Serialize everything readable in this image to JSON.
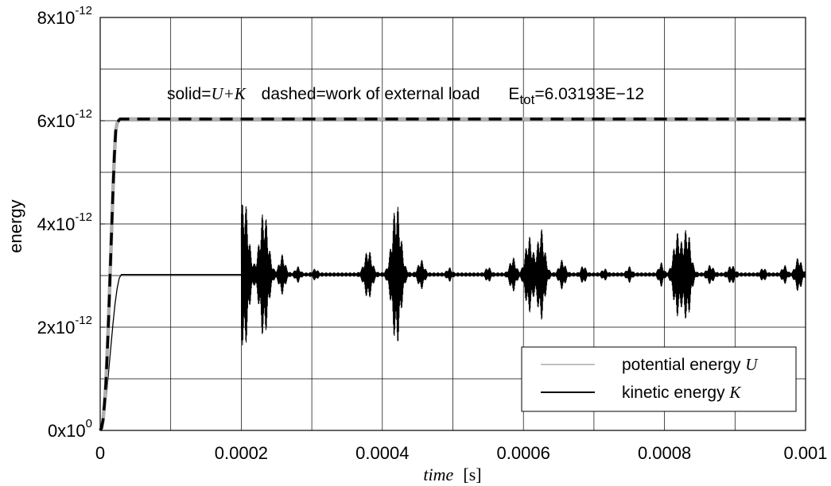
{
  "chart_data": {
    "type": "line",
    "xlabel": {
      "var": "time",
      "unit": "[s]"
    },
    "ylabel": "energy",
    "xlim": [
      0,
      0.001
    ],
    "ylim": [
      0,
      8e-12
    ],
    "x_ticks": [
      {
        "value": 0,
        "label": "0"
      },
      {
        "value": 0.0002,
        "label": "0.0002"
      },
      {
        "value": 0.0004,
        "label": "0.0004"
      },
      {
        "value": 0.0006,
        "label": "0.0006"
      },
      {
        "value": 0.0008,
        "label": "0.0008"
      },
      {
        "value": 0.001,
        "label": "0.001"
      }
    ],
    "y_ticks": [
      {
        "value": 0,
        "mantissa": "0x10",
        "exp": "0"
      },
      {
        "value": 2e-12,
        "mantissa": "2x10",
        "exp": "-12"
      },
      {
        "value": 4e-12,
        "mantissa": "4x10",
        "exp": "-12"
      },
      {
        "value": 6e-12,
        "mantissa": "6x10",
        "exp": "-12"
      },
      {
        "value": 8e-12,
        "mantissa": "8x10",
        "exp": "-12"
      }
    ],
    "grid": true,
    "annotation": {
      "solid_prefix": "solid=",
      "solid_expr": "U+K",
      "dashed_text": "dashed=work of external load",
      "etot_base": "E",
      "etot_sub": "tot",
      "etot_value": "=6.03193E−12"
    },
    "legend": {
      "placement": "bottom-right",
      "entries": [
        {
          "text": "potential energy ",
          "symbol": "U",
          "color": "#808080"
        },
        {
          "text": "kinetic energy ",
          "symbol": "K",
          "color": "#000000"
        }
      ]
    },
    "series": {
      "total_energy": {
        "style": "solid",
        "color": "#b0b0b0",
        "x": [
          0,
          2e-06,
          4e-06,
          6e-06,
          8e-06,
          1e-05,
          1.2e-05,
          1.4e-05,
          1.6e-05,
          1.8e-05,
          2e-05,
          2.2e-05,
          2.4e-05,
          2.6e-05,
          2.8e-05,
          3e-05,
          0.001
        ],
        "y": [
          0,
          5e-14,
          2e-13,
          5e-13,
          9e-13,
          1.5e-12,
          2.2e-12,
          3e-12,
          3.8e-12,
          4.6e-12,
          5.3e-12,
          5.8e-12,
          5.95e-12,
          6e-12,
          6.03e-12,
          6.03193e-12,
          6.03193e-12
        ]
      },
      "external_work": {
        "style": "dashed",
        "color": "#000000",
        "x": [
          0,
          2e-06,
          4e-06,
          6e-06,
          8e-06,
          1e-05,
          1.2e-05,
          1.4e-05,
          1.6e-05,
          1.8e-05,
          2e-05,
          2.2e-05,
          2.4e-05,
          2.6e-05,
          2.8e-05,
          3e-05,
          0.001
        ],
        "y": [
          0,
          5e-14,
          2e-13,
          5e-13,
          9e-13,
          1.5e-12,
          2.2e-12,
          3e-12,
          3.8e-12,
          4.6e-12,
          5.3e-12,
          5.8e-12,
          5.95e-12,
          6e-12,
          6.03e-12,
          6.03193e-12,
          6.03193e-12
        ]
      },
      "energy_ramp": {
        "style": "solid",
        "color": "#000000",
        "x": [
          0,
          3e-06,
          6e-06,
          9e-06,
          1.2e-05,
          1.5e-05,
          1.8e-05,
          2.1e-05,
          2.4e-05,
          2.7e-05,
          3e-05,
          0.0002
        ],
        "y": [
          0,
          1e-13,
          3.5e-13,
          7e-13,
          1.15e-12,
          1.6e-12,
          2.05e-12,
          2.45e-12,
          2.75e-12,
          2.95e-12,
          3.02e-12,
          3.02e-12
        ]
      },
      "oscillation": {
        "mean": 3.02e-12,
        "x_start": 0.0002,
        "x_end": 0.001,
        "bursts": [
          {
            "center": 0.000204,
            "amplitude": 1.45e-12,
            "width": 6e-06
          },
          {
            "center": 0.000232,
            "amplitude": 1.2e-12,
            "width": 6e-06
          },
          {
            "center": 0.000258,
            "amplitude": 3.5e-13,
            "width": 4e-06
          },
          {
            "center": 0.00028,
            "amplitude": 1.2e-13,
            "width": 3e-06
          },
          {
            "center": 0.000305,
            "amplitude": 8e-14,
            "width": 3e-06
          },
          {
            "center": 0.00038,
            "amplitude": 4.5e-13,
            "width": 5e-06
          },
          {
            "center": 0.00042,
            "amplitude": 1.35e-12,
            "width": 6e-06
          },
          {
            "center": 0.000455,
            "amplitude": 2.5e-13,
            "width": 4e-06
          },
          {
            "center": 0.000495,
            "amplitude": 1e-13,
            "width": 3e-06
          },
          {
            "center": 0.00055,
            "amplitude": 1.2e-13,
            "width": 3e-06
          },
          {
            "center": 0.000585,
            "amplitude": 3e-13,
            "width": 4e-06
          },
          {
            "center": 0.000608,
            "amplitude": 7e-13,
            "width": 5e-06
          },
          {
            "center": 0.000625,
            "amplitude": 8.5e-13,
            "width": 5e-06
          },
          {
            "center": 0.000655,
            "amplitude": 2.5e-13,
            "width": 4e-06
          },
          {
            "center": 0.000685,
            "amplitude": 1.5e-13,
            "width": 3e-06
          },
          {
            "center": 0.000715,
            "amplitude": 8e-14,
            "width": 3e-06
          },
          {
            "center": 0.00075,
            "amplitude": 1.2e-13,
            "width": 3e-06
          },
          {
            "center": 0.000795,
            "amplitude": 2e-13,
            "width": 3e-06
          },
          {
            "center": 0.000818,
            "amplitude": 7.5e-13,
            "width": 5e-06
          },
          {
            "center": 0.000832,
            "amplitude": 8.5e-13,
            "width": 5e-06
          },
          {
            "center": 0.000865,
            "amplitude": 1.5e-13,
            "width": 4e-06
          },
          {
            "center": 0.000895,
            "amplitude": 1.5e-13,
            "width": 4e-06
          },
          {
            "center": 0.00094,
            "amplitude": 1e-13,
            "width": 3e-06
          },
          {
            "center": 0.00097,
            "amplitude": 1.5e-13,
            "width": 3e-06
          },
          {
            "center": 0.00099,
            "amplitude": 3e-13,
            "width": 4e-06
          }
        ],
        "baseline_amplitude": 4e-14
      }
    }
  }
}
